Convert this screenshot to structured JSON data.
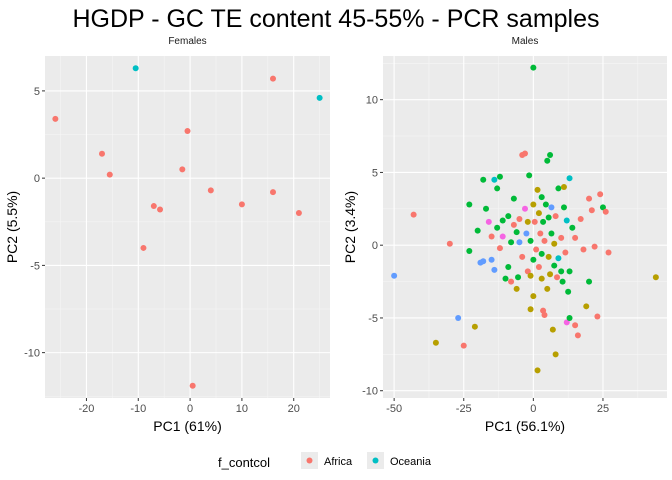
{
  "title": "HGDP - GC TE content 45-55% - PCR samples",
  "legend": {
    "title": "f_contcol",
    "entries": [
      {
        "label": "Africa",
        "color": "#F8766D"
      },
      {
        "label": "Oceania",
        "color": "#00BFC4"
      }
    ]
  },
  "colors": {
    "Africa": "#F8766D",
    "Olive": "#B79F00",
    "Green": "#00BA38",
    "Oceania": "#00BFC4",
    "Blue": "#619CFF",
    "Magenta": "#F564E3"
  },
  "chart_data": [
    {
      "type": "scatter",
      "panel": "Females",
      "xlabel": "PC1 (61%)",
      "ylabel": "PC2 (5.5%)",
      "xlim": [
        -28,
        27
      ],
      "ylim": [
        -12.6,
        7
      ],
      "xticks": [
        -20,
        -10,
        0,
        10,
        20
      ],
      "yticks": [
        -10,
        -5,
        0,
        5
      ],
      "grid": true,
      "points": [
        {
          "x": -26,
          "y": 3.4,
          "group": "Africa"
        },
        {
          "x": -17,
          "y": 1.4,
          "group": "Africa"
        },
        {
          "x": -15.5,
          "y": 0.2,
          "group": "Africa"
        },
        {
          "x": -10.5,
          "y": 6.3,
          "group": "Oceania"
        },
        {
          "x": -9,
          "y": -4,
          "group": "Africa"
        },
        {
          "x": -7,
          "y": -1.6,
          "group": "Africa"
        },
        {
          "x": -5.8,
          "y": -1.8,
          "group": "Africa"
        },
        {
          "x": -1.5,
          "y": 0.5,
          "group": "Africa"
        },
        {
          "x": -0.5,
          "y": 2.7,
          "group": "Africa"
        },
        {
          "x": 0.5,
          "y": -11.9,
          "group": "Africa"
        },
        {
          "x": 4,
          "y": -0.7,
          "group": "Africa"
        },
        {
          "x": 10,
          "y": -1.5,
          "group": "Africa"
        },
        {
          "x": 16,
          "y": 5.7,
          "group": "Africa"
        },
        {
          "x": 16,
          "y": -0.8,
          "group": "Africa"
        },
        {
          "x": 21,
          "y": -2,
          "group": "Africa"
        },
        {
          "x": 25,
          "y": 4.6,
          "group": "Oceania"
        }
      ]
    },
    {
      "type": "scatter",
      "panel": "Males",
      "xlabel": "PC1 (56.1%)",
      "ylabel": "PC2 (3.4%)",
      "xlim": [
        -54,
        48
      ],
      "ylim": [
        -10.5,
        13
      ],
      "xticks": [
        -50,
        -25,
        0,
        25
      ],
      "yticks": [
        -10,
        -5,
        0,
        5,
        10
      ],
      "grid": true,
      "points": [
        {
          "x": -50,
          "y": -2.1,
          "group": "Blue"
        },
        {
          "x": -43,
          "y": 2.1,
          "group": "Africa"
        },
        {
          "x": -35,
          "y": -6.7,
          "group": "Olive"
        },
        {
          "x": -30,
          "y": 0.1,
          "group": "Africa"
        },
        {
          "x": -27,
          "y": -5,
          "group": "Blue"
        },
        {
          "x": -25,
          "y": -6.9,
          "group": "Africa"
        },
        {
          "x": -23,
          "y": -0.4,
          "group": "Green"
        },
        {
          "x": -23,
          "y": 2.8,
          "group": "Green"
        },
        {
          "x": -21,
          "y": -5.6,
          "group": "Olive"
        },
        {
          "x": -20,
          "y": 1,
          "group": "Green"
        },
        {
          "x": -19,
          "y": -1.2,
          "group": "Blue"
        },
        {
          "x": -18,
          "y": -1.1,
          "group": "Blue"
        },
        {
          "x": -18,
          "y": 4.5,
          "group": "Green"
        },
        {
          "x": -17,
          "y": 2.5,
          "group": "Green"
        },
        {
          "x": -16,
          "y": 1.6,
          "group": "Magenta"
        },
        {
          "x": -15,
          "y": 0.6,
          "group": "Africa"
        },
        {
          "x": -15,
          "y": -1,
          "group": "Blue"
        },
        {
          "x": -14,
          "y": -1.7,
          "group": "Blue"
        },
        {
          "x": -14,
          "y": 4.5,
          "group": "Oceania"
        },
        {
          "x": -13,
          "y": 3.9,
          "group": "Green"
        },
        {
          "x": -13,
          "y": 1.2,
          "group": "Green"
        },
        {
          "x": -12,
          "y": 4.7,
          "group": "Green"
        },
        {
          "x": -12,
          "y": -0.2,
          "group": "Africa"
        },
        {
          "x": -11,
          "y": 1.7,
          "group": "Green"
        },
        {
          "x": -11,
          "y": 0.6,
          "group": "Magenta"
        },
        {
          "x": -10,
          "y": -2.3,
          "group": "Green"
        },
        {
          "x": -9,
          "y": 2,
          "group": "Green"
        },
        {
          "x": -9,
          "y": -1.5,
          "group": "Green"
        },
        {
          "x": -8,
          "y": 0.2,
          "group": "Green"
        },
        {
          "x": -8,
          "y": -2.5,
          "group": "Africa"
        },
        {
          "x": -7,
          "y": 1.4,
          "group": "Africa"
        },
        {
          "x": -7,
          "y": 3.2,
          "group": "Green"
        },
        {
          "x": -6,
          "y": 0.9,
          "group": "Green"
        },
        {
          "x": -6,
          "y": -3,
          "group": "Olive"
        },
        {
          "x": -5.5,
          "y": -2.2,
          "group": "Green"
        },
        {
          "x": -5,
          "y": 0.2,
          "group": "Blue"
        },
        {
          "x": -5,
          "y": 1.8,
          "group": "Africa"
        },
        {
          "x": -4,
          "y": -0.8,
          "group": "Africa"
        },
        {
          "x": -4,
          "y": 6.2,
          "group": "Africa"
        },
        {
          "x": -3,
          "y": 6.3,
          "group": "Africa"
        },
        {
          "x": -3,
          "y": 2.5,
          "group": "Magenta"
        },
        {
          "x": -2.5,
          "y": 0.8,
          "group": "Blue"
        },
        {
          "x": -2,
          "y": -1.8,
          "group": "Africa"
        },
        {
          "x": -2,
          "y": 1.6,
          "group": "Olive"
        },
        {
          "x": -1,
          "y": -4.4,
          "group": "Olive"
        },
        {
          "x": -1.5,
          "y": 4.8,
          "group": "Green"
        },
        {
          "x": -1,
          "y": 0.3,
          "group": "Green"
        },
        {
          "x": -1,
          "y": -2.1,
          "group": "Olive"
        },
        {
          "x": 0,
          "y": -3.5,
          "group": "Olive"
        },
        {
          "x": 0,
          "y": 2.8,
          "group": "Olive"
        },
        {
          "x": 0,
          "y": 12.2,
          "group": "Green"
        },
        {
          "x": 0,
          "y": -1,
          "group": "Green"
        },
        {
          "x": 0.5,
          "y": 1.6,
          "group": "Africa"
        },
        {
          "x": 1,
          "y": -0.3,
          "group": "Africa"
        },
        {
          "x": 1.5,
          "y": 3.8,
          "group": "Olive"
        },
        {
          "x": 1.5,
          "y": -8.6,
          "group": "Olive"
        },
        {
          "x": 2,
          "y": 2.2,
          "group": "Olive"
        },
        {
          "x": 2,
          "y": -1.5,
          "group": "Africa"
        },
        {
          "x": 2.5,
          "y": 0.8,
          "group": "Africa"
        },
        {
          "x": 3,
          "y": 3.3,
          "group": "Green"
        },
        {
          "x": 3,
          "y": -0.6,
          "group": "Green"
        },
        {
          "x": 3,
          "y": -2.3,
          "group": "Olive"
        },
        {
          "x": 3.5,
          "y": 1.6,
          "group": "Green"
        },
        {
          "x": 3.5,
          "y": -4.5,
          "group": "Africa"
        },
        {
          "x": 4,
          "y": 0.3,
          "group": "Africa"
        },
        {
          "x": 4,
          "y": -4.8,
          "group": "Africa"
        },
        {
          "x": 4.5,
          "y": 2.8,
          "group": "Green"
        },
        {
          "x": 5,
          "y": 5.8,
          "group": "Green"
        },
        {
          "x": 5,
          "y": -3,
          "group": "Olive"
        },
        {
          "x": 5.5,
          "y": -0.8,
          "group": "Olive"
        },
        {
          "x": 5.5,
          "y": 1.9,
          "group": "Green"
        },
        {
          "x": 6,
          "y": 6.2,
          "group": "Green"
        },
        {
          "x": 6,
          "y": -2,
          "group": "Olive"
        },
        {
          "x": 6.5,
          "y": 0.8,
          "group": "Green"
        },
        {
          "x": 6.5,
          "y": 2.6,
          "group": "Blue"
        },
        {
          "x": 7,
          "y": -5.8,
          "group": "Olive"
        },
        {
          "x": 7.5,
          "y": -1.4,
          "group": "Green"
        },
        {
          "x": 7.5,
          "y": 0.1,
          "group": "Olive"
        },
        {
          "x": 8,
          "y": 2,
          "group": "Africa"
        },
        {
          "x": 8,
          "y": -7.5,
          "group": "Olive"
        },
        {
          "x": 8.5,
          "y": -2.2,
          "group": "Africa"
        },
        {
          "x": 9,
          "y": -0.9,
          "group": "Oceania"
        },
        {
          "x": 9,
          "y": 3.9,
          "group": "Green"
        },
        {
          "x": 10,
          "y": -1.8,
          "group": "Green"
        },
        {
          "x": 10,
          "y": 0.5,
          "group": "Africa"
        },
        {
          "x": 10.5,
          "y": -2.5,
          "group": "Green"
        },
        {
          "x": 11,
          "y": 2.6,
          "group": "Green"
        },
        {
          "x": 11,
          "y": 4,
          "group": "Olive"
        },
        {
          "x": 11.5,
          "y": -0.5,
          "group": "Africa"
        },
        {
          "x": 12,
          "y": 1.7,
          "group": "Oceania"
        },
        {
          "x": 12,
          "y": -5.3,
          "group": "Magenta"
        },
        {
          "x": 12.5,
          "y": -3.2,
          "group": "Green"
        },
        {
          "x": 13,
          "y": -1.8,
          "group": "Green"
        },
        {
          "x": 13,
          "y": 4.6,
          "group": "Oceania"
        },
        {
          "x": 13,
          "y": -5,
          "group": "Green"
        },
        {
          "x": 14,
          "y": 1.2,
          "group": "Green"
        },
        {
          "x": 15,
          "y": 0.5,
          "group": "Africa"
        },
        {
          "x": 15,
          "y": -5.5,
          "group": "Africa"
        },
        {
          "x": 16,
          "y": -6.2,
          "group": "Africa"
        },
        {
          "x": 17,
          "y": 1.8,
          "group": "Africa"
        },
        {
          "x": 18,
          "y": -0.3,
          "group": "Africa"
        },
        {
          "x": 19,
          "y": -4.2,
          "group": "Olive"
        },
        {
          "x": 20,
          "y": 3.2,
          "group": "Africa"
        },
        {
          "x": 20,
          "y": -2.5,
          "group": "Green"
        },
        {
          "x": 21,
          "y": 2.4,
          "group": "Africa"
        },
        {
          "x": 22,
          "y": -0.1,
          "group": "Africa"
        },
        {
          "x": 23,
          "y": -4.9,
          "group": "Africa"
        },
        {
          "x": 24,
          "y": 3.5,
          "group": "Africa"
        },
        {
          "x": 25,
          "y": 2.6,
          "group": "Green"
        },
        {
          "x": 26,
          "y": 2.3,
          "group": "Africa"
        },
        {
          "x": 27,
          "y": -0.5,
          "group": "Africa"
        },
        {
          "x": 44,
          "y": -2.2,
          "group": "Olive"
        }
      ]
    }
  ]
}
